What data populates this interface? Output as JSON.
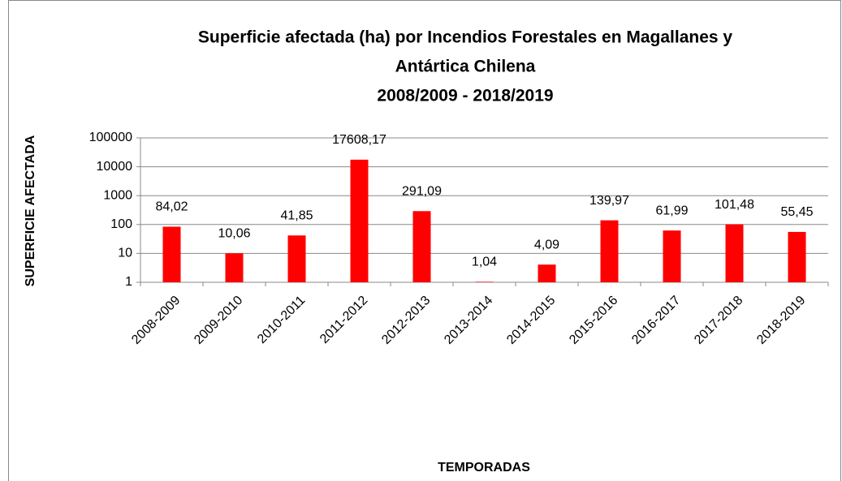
{
  "chart_data": {
    "type": "bar",
    "title": [
      "Superficie afectada (ha) por Incendios Forestales en Magallanes y",
      "Antártica Chilena",
      "2008/2009 - 2018/2019"
    ],
    "x_label": "TEMPORADAS",
    "y_label": "SUPERFICIE AFECTADA",
    "categories": [
      "2008-2009",
      "2009-2010",
      "2010-2011",
      "2011-2012",
      "2012-2013",
      "2013-2014",
      "2014-2015",
      "2015-2016",
      "2016-2017",
      "2017-2018",
      "2018-2019"
    ],
    "values": [
      84.02,
      10.06,
      41.85,
      17608.17,
      291.09,
      1.04,
      4.09,
      139.97,
      61.99,
      101.48,
      55.45
    ],
    "value_labels": [
      "84,02",
      "10,06",
      "41,85",
      "17608,17",
      "291,09",
      "1,04",
      "4,09",
      "139,97",
      "61,99",
      "101,48",
      "55,45"
    ],
    "color": "#ff0000",
    "log_scale": true,
    "ylim": [
      1,
      100000
    ],
    "yticks": [
      1,
      10,
      100,
      1000,
      10000,
      100000
    ],
    "grid": true
  }
}
